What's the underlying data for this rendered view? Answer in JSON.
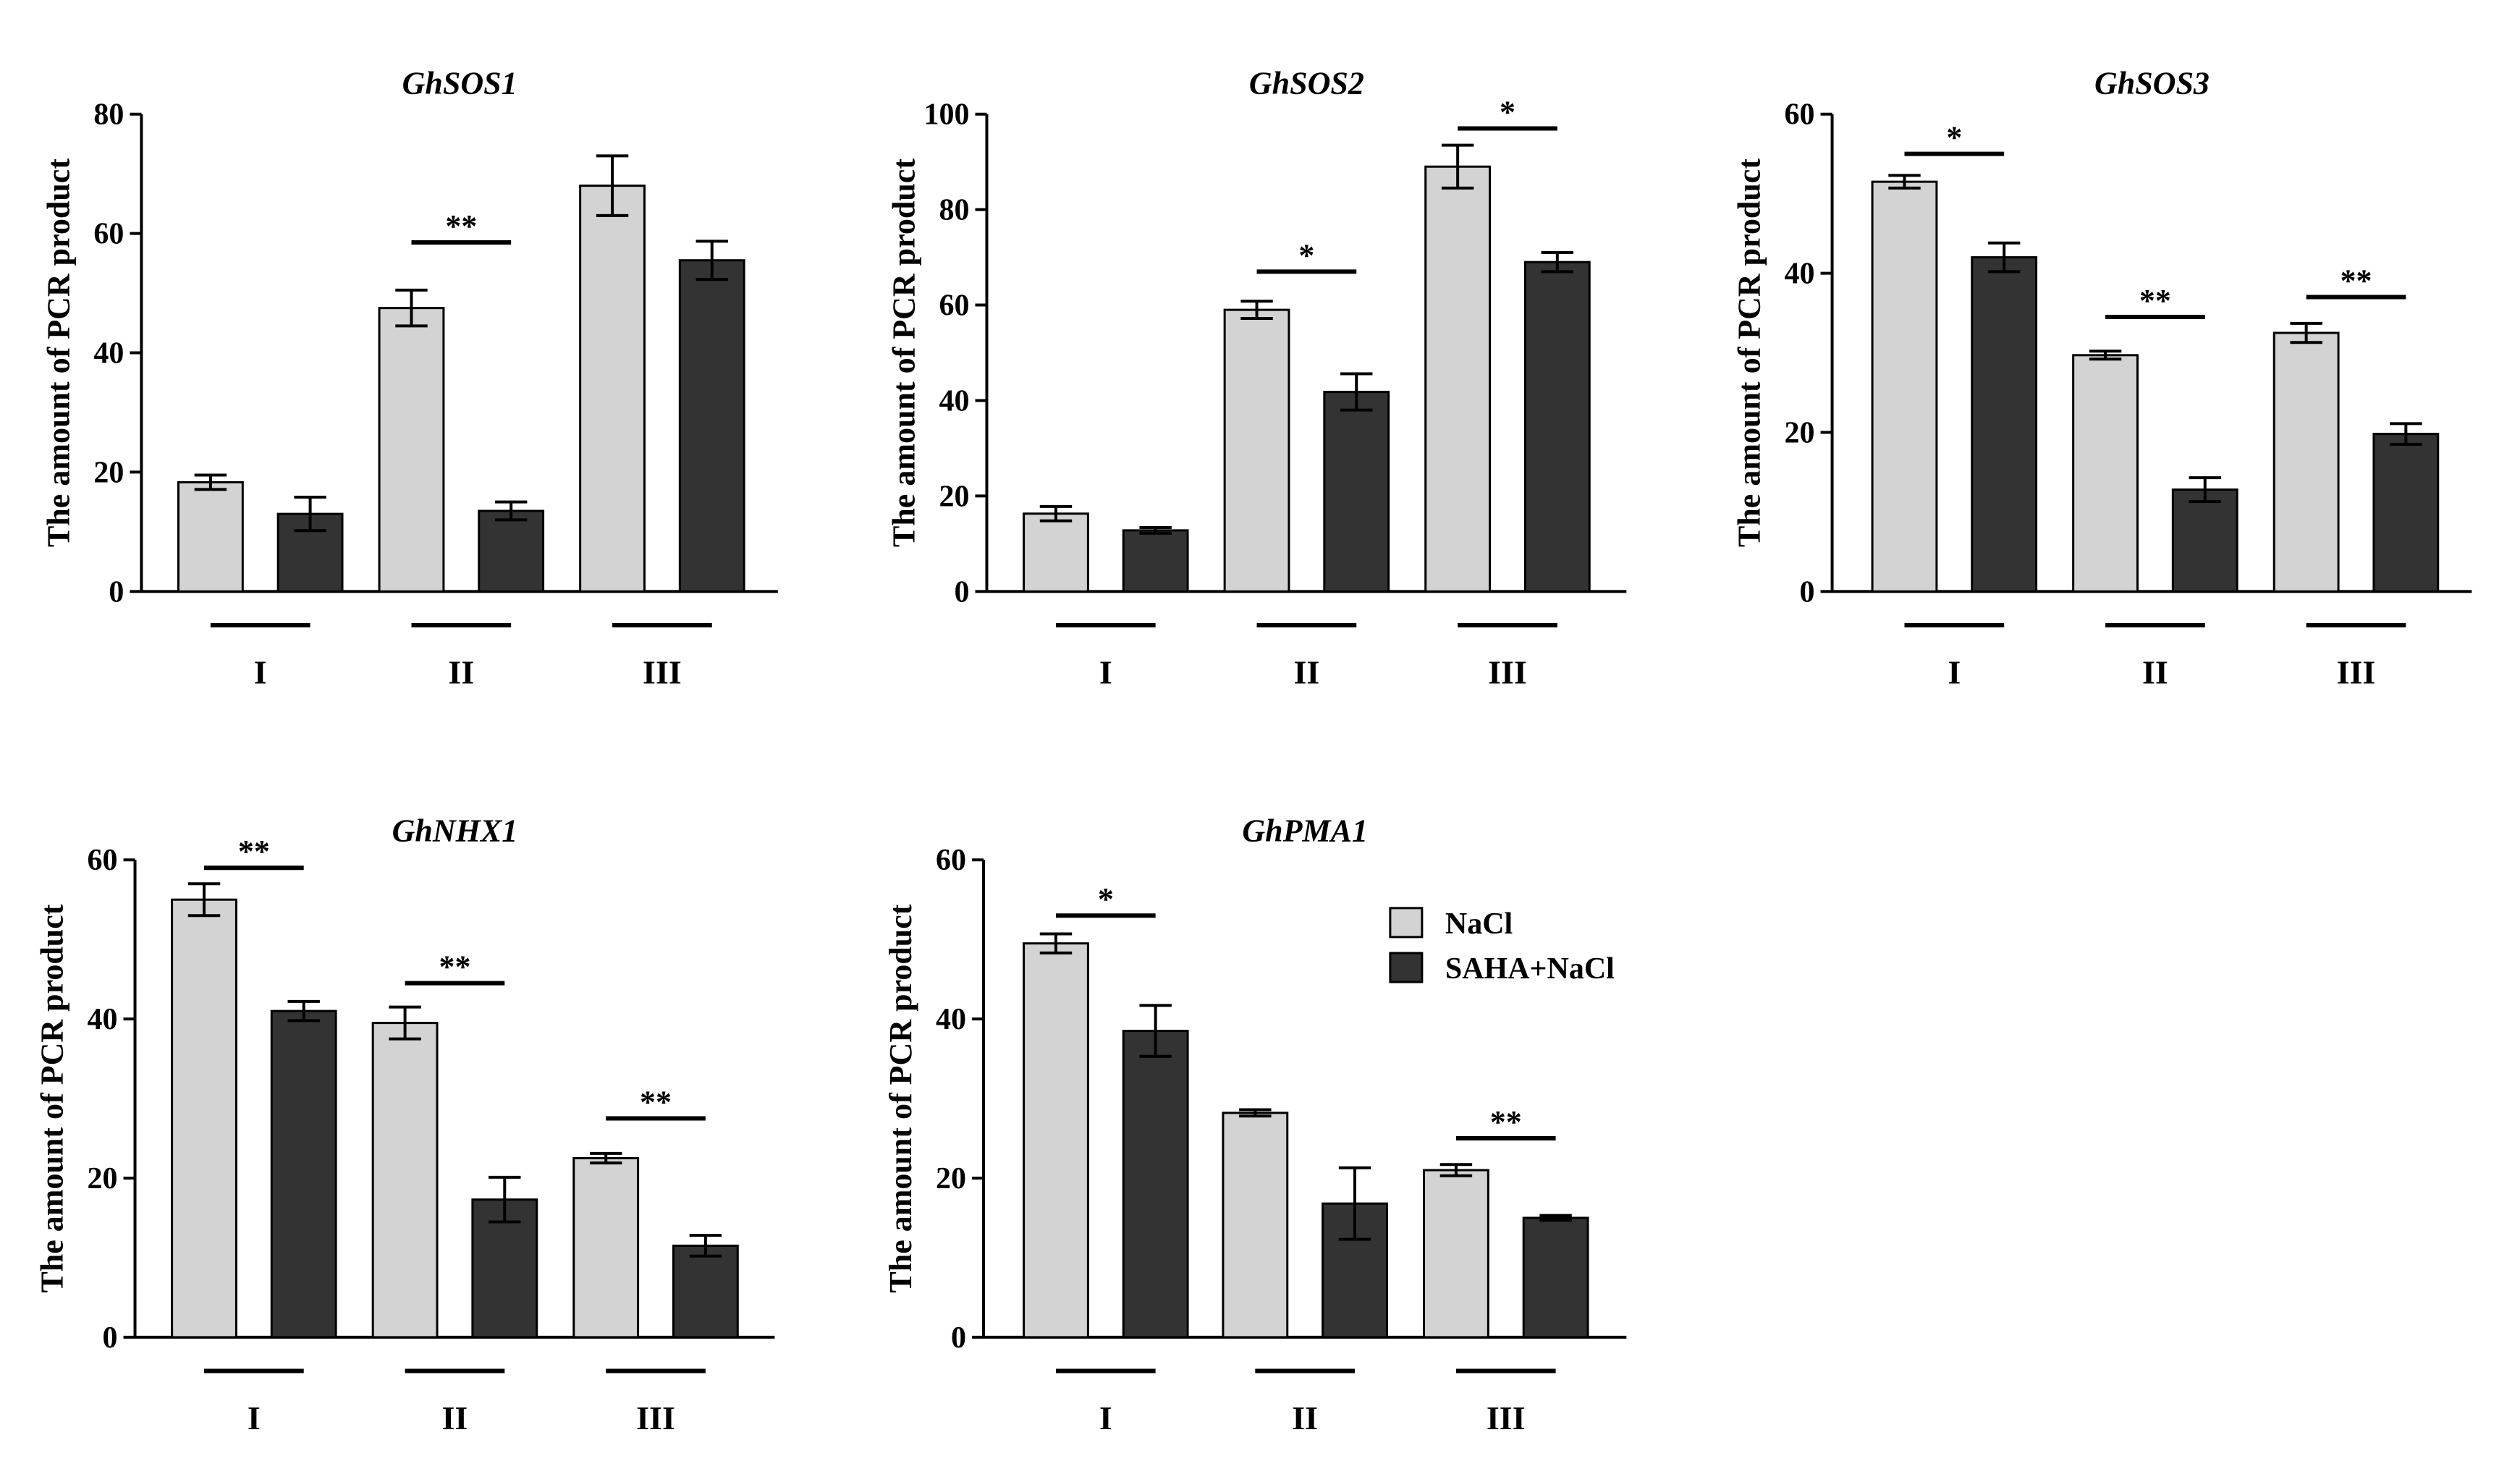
{
  "colors": {
    "nacl": "#d3d3d3",
    "saha_nacl": "#333333",
    "ink": "#000000"
  },
  "legend": {
    "items": [
      {
        "label": "NaCl",
        "color": "#d3d3d3"
      },
      {
        "label": "SAHA+NaCl",
        "color": "#333333"
      }
    ]
  },
  "chart_data": [
    {
      "type": "bar",
      "title": "GhSOS1",
      "ylabel": "The amount of PCR product",
      "xlabel": "",
      "categories": [
        "I",
        "II",
        "III"
      ],
      "ylim": [
        0,
        80
      ],
      "yticks": [
        0,
        20,
        40,
        60,
        80
      ],
      "series": [
        {
          "name": "NaCl",
          "values": [
            18.3,
            47.5,
            68.0
          ],
          "errors": [
            1.2,
            3.0,
            5.0
          ]
        },
        {
          "name": "SAHA+NaCl",
          "values": [
            13.0,
            13.5,
            55.5
          ],
          "errors": [
            2.8,
            1.5,
            3.2
          ]
        }
      ],
      "significance": [
        {
          "group": 1,
          "label": "**",
          "level": 58.5
        }
      ],
      "legend": false
    },
    {
      "type": "bar",
      "title": "GhSOS2",
      "ylabel": "The amount of PCR product",
      "xlabel": "",
      "categories": [
        "I",
        "II",
        "III"
      ],
      "ylim": [
        0,
        100
      ],
      "yticks": [
        0,
        20,
        40,
        60,
        80,
        100
      ],
      "series": [
        {
          "name": "NaCl",
          "values": [
            16.3,
            59.0,
            89.0
          ],
          "errors": [
            1.5,
            1.8,
            4.5
          ]
        },
        {
          "name": "SAHA+NaCl",
          "values": [
            12.8,
            41.8,
            69.0
          ],
          "errors": [
            0.6,
            3.8,
            2.0
          ]
        }
      ],
      "significance": [
        {
          "group": 1,
          "label": "*",
          "level": 67.0
        },
        {
          "group": 2,
          "label": "*",
          "level": 97.0
        }
      ],
      "legend": false
    },
    {
      "type": "bar",
      "title": "GhSOS3",
      "ylabel": "The amount of PCR product",
      "xlabel": "",
      "categories": [
        "I",
        "II",
        "III"
      ],
      "ylim": [
        0,
        60
      ],
      "yticks": [
        0,
        20,
        40,
        60
      ],
      "series": [
        {
          "name": "NaCl",
          "values": [
            51.5,
            29.7,
            32.5
          ],
          "errors": [
            0.8,
            0.5,
            1.2
          ]
        },
        {
          "name": "SAHA+NaCl",
          "values": [
            42.0,
            12.8,
            19.8
          ],
          "errors": [
            1.8,
            1.5,
            1.3
          ]
        }
      ],
      "significance": [
        {
          "group": 0,
          "label": "*",
          "level": 55.0
        },
        {
          "group": 1,
          "label": "**",
          "level": 34.5
        },
        {
          "group": 2,
          "label": "**",
          "level": 37.0
        }
      ],
      "legend": false
    },
    {
      "type": "bar",
      "title": "GhNHX1",
      "ylabel": "The amount of PCR product",
      "xlabel": "",
      "categories": [
        "I",
        "II",
        "III"
      ],
      "ylim": [
        0,
        60
      ],
      "yticks": [
        0,
        20,
        40,
        60
      ],
      "series": [
        {
          "name": "NaCl",
          "values": [
            55.0,
            39.5,
            22.5
          ],
          "errors": [
            2.0,
            2.0,
            0.6
          ]
        },
        {
          "name": "SAHA+NaCl",
          "values": [
            41.0,
            17.3,
            11.5
          ],
          "errors": [
            1.2,
            2.8,
            1.3
          ]
        }
      ],
      "significance": [
        {
          "group": 0,
          "label": "**",
          "level": 59.0
        },
        {
          "group": 1,
          "label": "**",
          "level": 44.5
        },
        {
          "group": 2,
          "label": "**",
          "level": 27.5
        }
      ],
      "legend": false
    },
    {
      "type": "bar",
      "title": "GhPMA1",
      "ylabel": "The amount of PCR product",
      "xlabel": "",
      "categories": [
        "I",
        "II",
        "III"
      ],
      "ylim": [
        0,
        60
      ],
      "yticks": [
        0,
        20,
        40,
        60
      ],
      "series": [
        {
          "name": "NaCl",
          "values": [
            49.5,
            28.2,
            21.0
          ],
          "errors": [
            1.2,
            0.4,
            0.7
          ]
        },
        {
          "name": "SAHA+NaCl",
          "values": [
            38.5,
            16.8,
            15.0
          ],
          "errors": [
            3.2,
            4.5,
            0.3
          ]
        }
      ],
      "significance": [
        {
          "group": 0,
          "label": "*",
          "level": 53.0
        },
        {
          "group": 2,
          "label": "**",
          "level": 25.0
        }
      ],
      "legend": true
    }
  ]
}
